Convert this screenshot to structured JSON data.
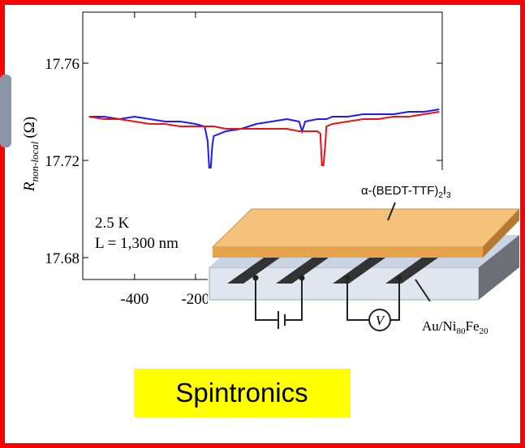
{
  "chart_data": {
    "type": "line",
    "ylabel": {
      "symbol": "R",
      "subscript": "non-local",
      "unit": "(Ω)"
    },
    "annotations": [
      "2.5 K",
      "L = 1,300 nm"
    ],
    "xlim": [
      -570,
      610
    ],
    "ylim": [
      17.671,
      17.781
    ],
    "xticks": [
      -400,
      -200
    ],
    "yticks": [
      17.76,
      17.72,
      17.68
    ],
    "x": [
      -550,
      -500,
      -450,
      -400,
      -350,
      -300,
      -250,
      -200,
      -170,
      -160,
      -155,
      -150,
      -145,
      -140,
      -100,
      -50,
      0,
      50,
      100,
      140,
      150,
      160,
      200,
      210,
      215,
      220,
      225,
      230,
      250,
      300,
      350,
      400,
      450,
      500,
      550,
      600
    ],
    "series": [
      {
        "name": "blue",
        "color": "#1a1aff",
        "values": [
          17.738,
          17.738,
          17.737,
          17.738,
          17.737,
          17.736,
          17.736,
          17.735,
          17.734,
          17.728,
          17.717,
          17.717,
          17.726,
          17.73,
          17.732,
          17.733,
          17.735,
          17.736,
          17.737,
          17.736,
          17.732,
          17.736,
          17.737,
          17.737,
          17.737,
          17.737,
          17.737,
          17.737,
          17.738,
          17.738,
          17.739,
          17.739,
          17.739,
          17.74,
          17.74,
          17.741
        ]
      },
      {
        "name": "red",
        "color": "#ee1111",
        "values": [
          17.738,
          17.737,
          17.737,
          17.736,
          17.735,
          17.735,
          17.734,
          17.734,
          17.734,
          17.734,
          17.734,
          17.734,
          17.734,
          17.734,
          17.733,
          17.733,
          17.733,
          17.733,
          17.733,
          17.732,
          17.732,
          17.732,
          17.732,
          17.731,
          17.718,
          17.718,
          17.725,
          17.734,
          17.735,
          17.736,
          17.737,
          17.737,
          17.738,
          17.738,
          17.739,
          17.74
        ]
      }
    ]
  },
  "diagram": {
    "crystal_label": {
      "prefix": "α-(BEDT-TTF)",
      "sub1": "2",
      "mid": "I",
      "sub2": "3"
    },
    "electrode_label": {
      "prefix": "Au/Ni",
      "sub1": "80",
      "mid": "Fe",
      "sub2": "20"
    },
    "voltmeter": "V"
  },
  "badge": "Spintronics"
}
